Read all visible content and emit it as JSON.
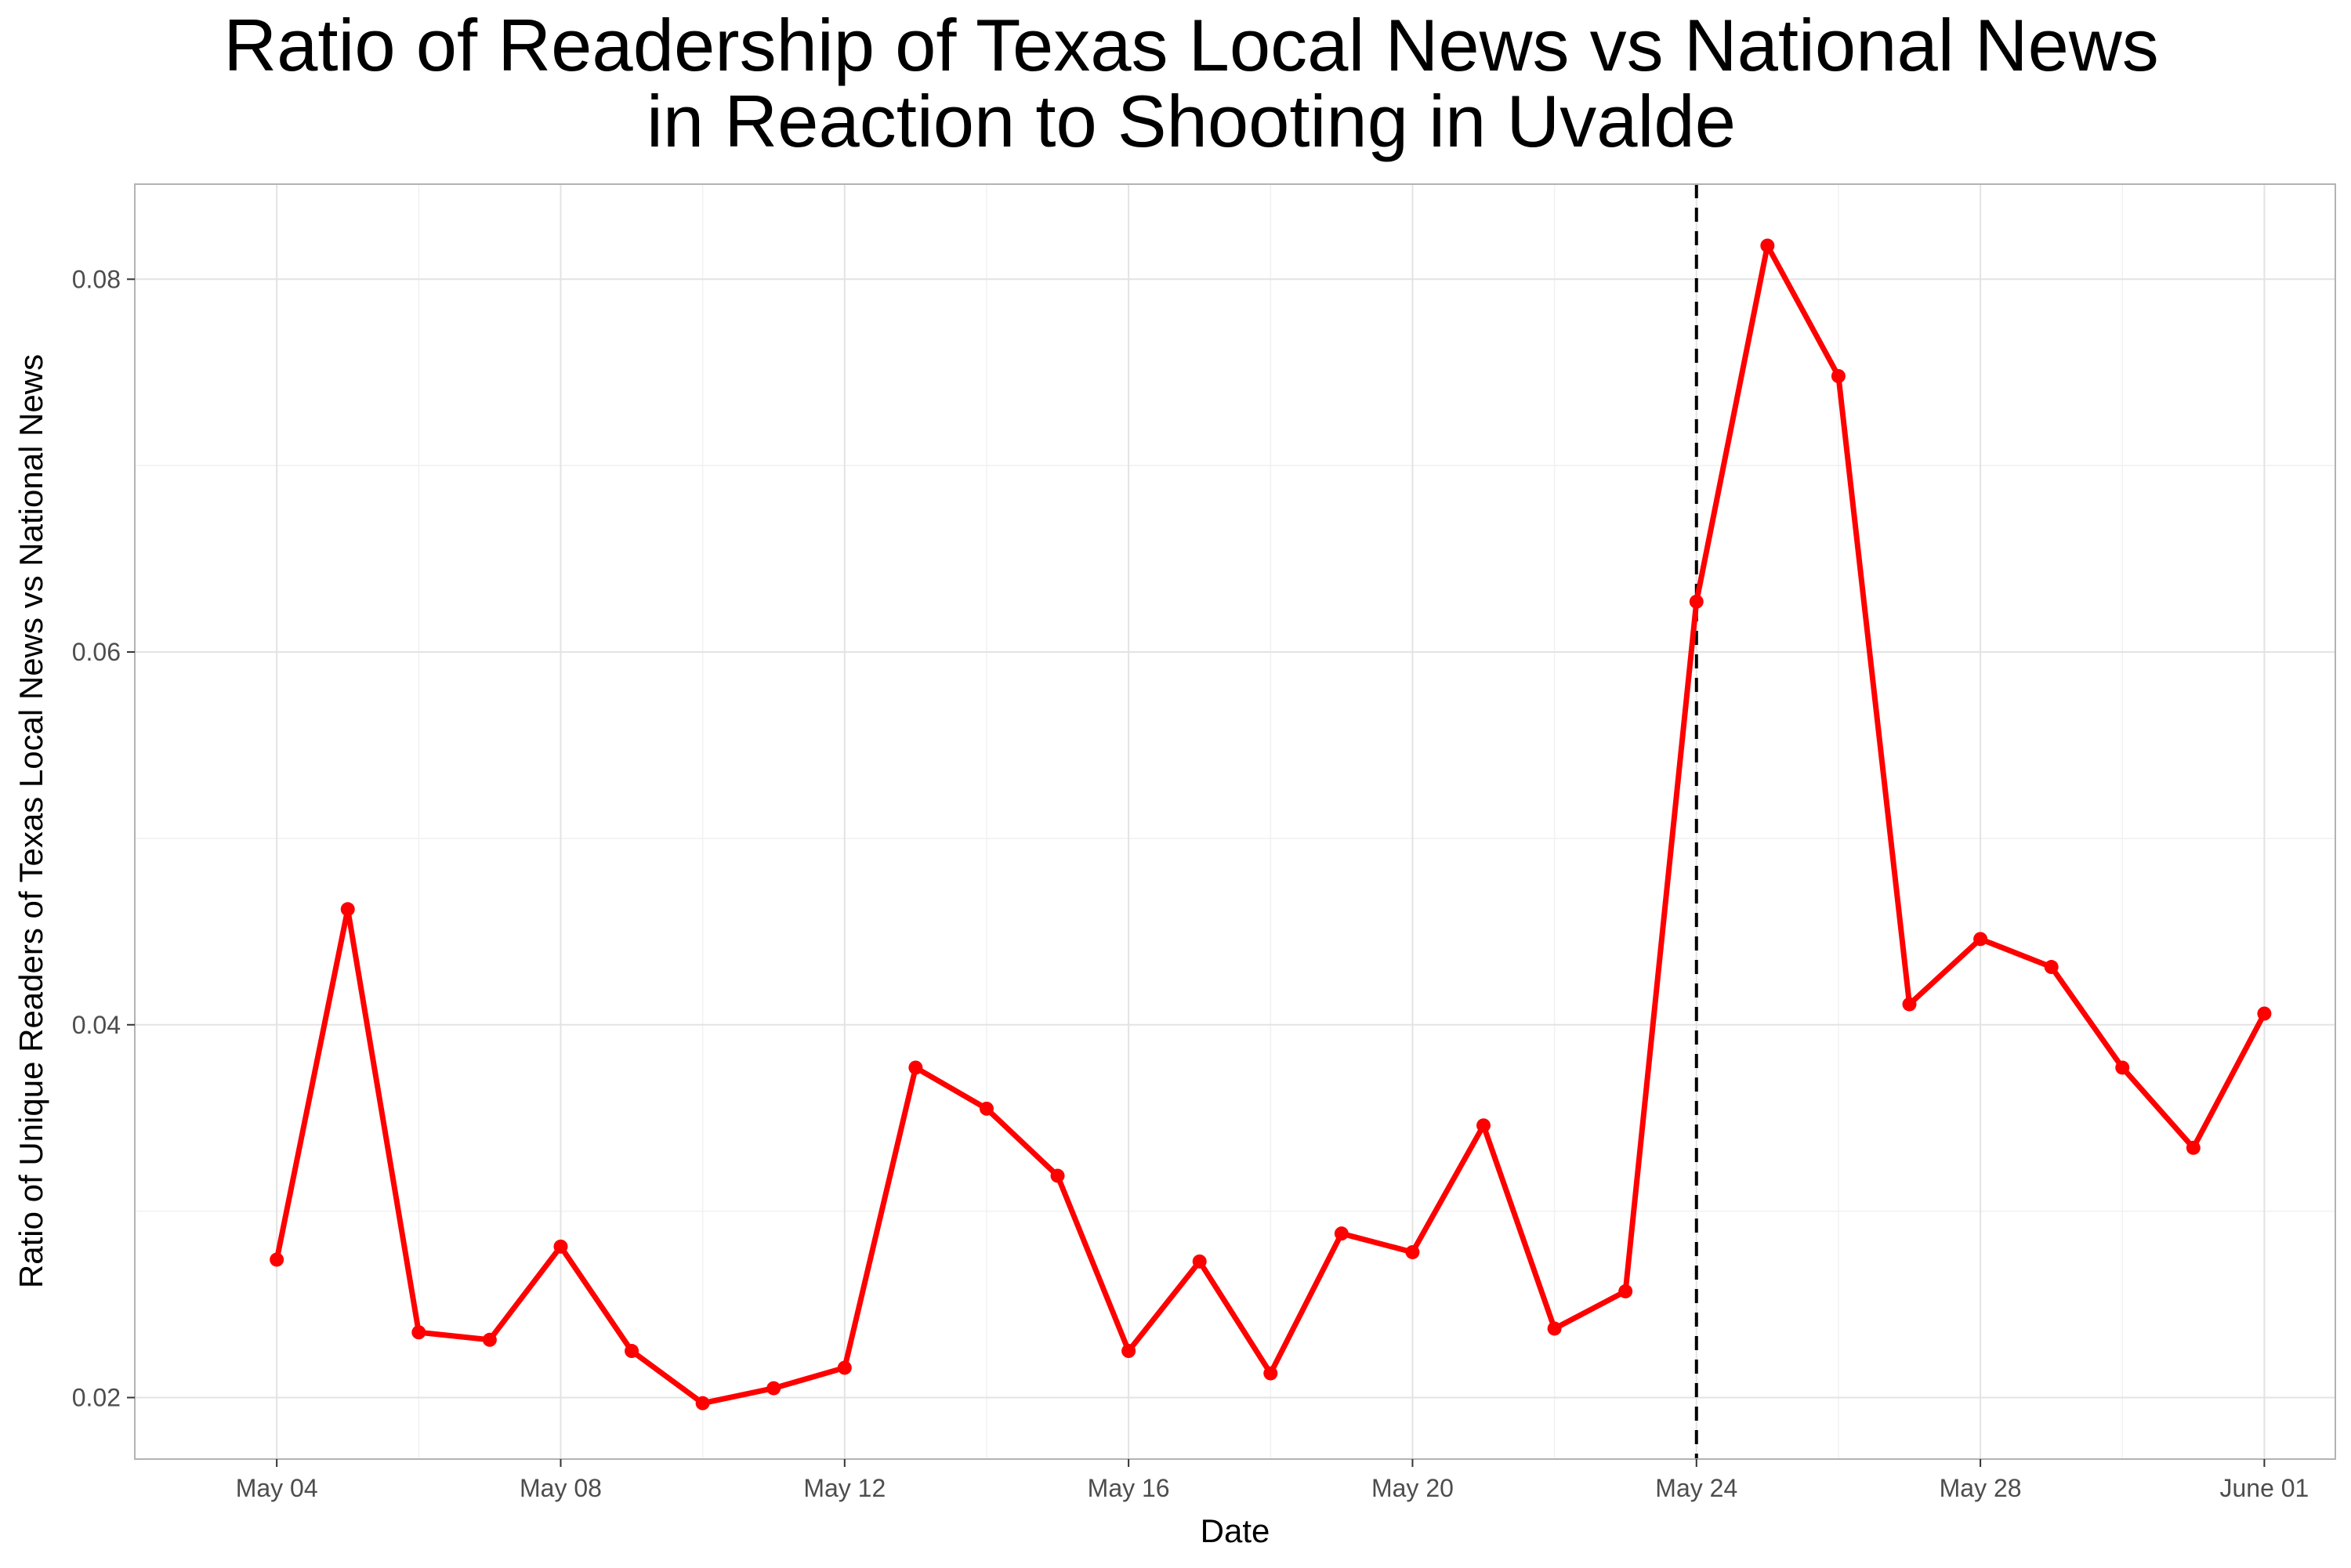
{
  "chart_data": {
    "type": "line",
    "title_lines": [
      "Ratio of Readership of Texas Local News vs National News",
      "in Reaction to Shooting in Uvalde"
    ],
    "xlabel": "Date",
    "ylabel": "Ratio of Unique Readers of Texas Local News vs National News",
    "x_tick_labels": [
      "May 04",
      "May 08",
      "May 12",
      "May 16",
      "May 20",
      "May 24",
      "May 28",
      "June 01"
    ],
    "x_tick_dates": [
      "2022-05-04",
      "2022-05-08",
      "2022-05-12",
      "2022-05-16",
      "2022-05-20",
      "2022-05-24",
      "2022-05-28",
      "2022-06-01"
    ],
    "y_ticks": [
      0.02,
      0.04,
      0.06,
      0.08
    ],
    "y_tick_labels": [
      "0.02",
      "0.04",
      "0.06",
      "0.08"
    ],
    "xlim": [
      "2022-05-02",
      "2022-06-02"
    ],
    "ylim": [
      0.0167,
      0.0851
    ],
    "grid": true,
    "line_color": "#ff0000",
    "vline": {
      "x": "2022-05-24",
      "style": "dashed",
      "color": "#000000"
    },
    "x": [
      "2022-05-04",
      "2022-05-05",
      "2022-05-06",
      "2022-05-07",
      "2022-05-08",
      "2022-05-09",
      "2022-05-10",
      "2022-05-11",
      "2022-05-12",
      "2022-05-13",
      "2022-05-14",
      "2022-05-15",
      "2022-05-16",
      "2022-05-17",
      "2022-05-18",
      "2022-05-19",
      "2022-05-20",
      "2022-05-21",
      "2022-05-22",
      "2022-05-23",
      "2022-05-24",
      "2022-05-25",
      "2022-05-26",
      "2022-05-27",
      "2022-05-28",
      "2022-05-29",
      "2022-05-30",
      "2022-05-31",
      "2022-06-01"
    ],
    "values": [
      0.0274,
      0.0462,
      0.0235,
      0.0231,
      0.0281,
      0.0225,
      0.0197,
      0.0205,
      0.0216,
      0.0377,
      0.0355,
      0.0319,
      0.0225,
      0.0273,
      0.0213,
      0.0288,
      0.0278,
      0.0346,
      0.0237,
      0.0257,
      0.0627,
      0.0818,
      0.0748,
      0.0411,
      0.0446,
      0.0431,
      0.0377,
      0.0334,
      0.0406
    ]
  }
}
